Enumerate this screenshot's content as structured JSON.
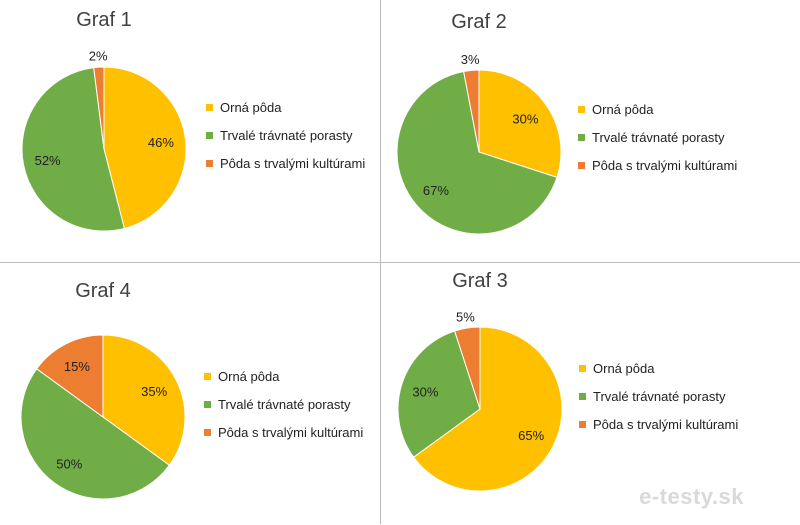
{
  "colors": {
    "orna": "#FFC000",
    "trvale": "#70AD47",
    "poda": "#ED7D31"
  },
  "chart_data": [
    {
      "type": "pie",
      "title": "Graf 1",
      "categories": [
        "Orná pôda",
        "Trvalé trávnaté porasty",
        "Pôda s trvalými kultúrami"
      ],
      "values": [
        46,
        52,
        2
      ],
      "labels": [
        "46%",
        "52%",
        "2%"
      ],
      "legend_position": "right"
    },
    {
      "type": "pie",
      "title": "Graf 2",
      "categories": [
        "Orná pôda",
        "Trvalé trávnaté porasty",
        "Pôda s trvalými kultúrami"
      ],
      "values": [
        30,
        67,
        3
      ],
      "labels": [
        "30%",
        "67%",
        "3%"
      ],
      "legend_position": "right"
    },
    {
      "type": "pie",
      "title": "Graf 4",
      "categories": [
        "Orná pôda",
        "Trvalé trávnaté porasty",
        "Pôda s trvalými kultúrami"
      ],
      "values": [
        35,
        50,
        15
      ],
      "labels": [
        "35%",
        "50%",
        "15%"
      ],
      "legend_position": "right"
    },
    {
      "type": "pie",
      "title": "Graf 3",
      "categories": [
        "Orná pôda",
        "Trvalé trávnaté porasty",
        "Pôda s trvalými kultúrami"
      ],
      "values": [
        65,
        30,
        5
      ],
      "labels": [
        "65%",
        "30%",
        "5%"
      ],
      "legend_position": "right"
    }
  ],
  "watermark": "e-testy.sk"
}
